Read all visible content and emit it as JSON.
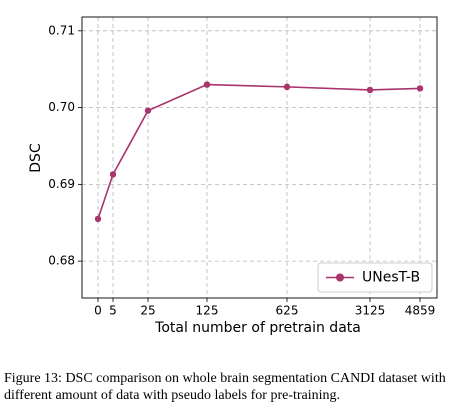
{
  "chart_data": {
    "type": "line",
    "x_label": "Total number of pretrain data",
    "y_label": "DSC",
    "categories": [
      "0",
      "5",
      "25",
      "125",
      "625",
      "3125",
      "4859"
    ],
    "series": [
      {
        "name": "UNesT-B",
        "color": "#a8336d",
        "values": [
          0.6855,
          0.6913,
          0.6996,
          0.703,
          0.7027,
          0.7023,
          0.7025
        ]
      }
    ],
    "ylim": [
      0.6752,
      0.7118
    ],
    "yticks": [
      0.68,
      0.69,
      {
        "value": 0.7,
        "label": "0.70"
      },
      0.71
    ],
    "grid": true,
    "legend": "lower right"
  },
  "caption": "Figure 13: DSC comparison on whole brain segmentation CANDI dataset with different amount of data with pseudo labels for pre-training."
}
